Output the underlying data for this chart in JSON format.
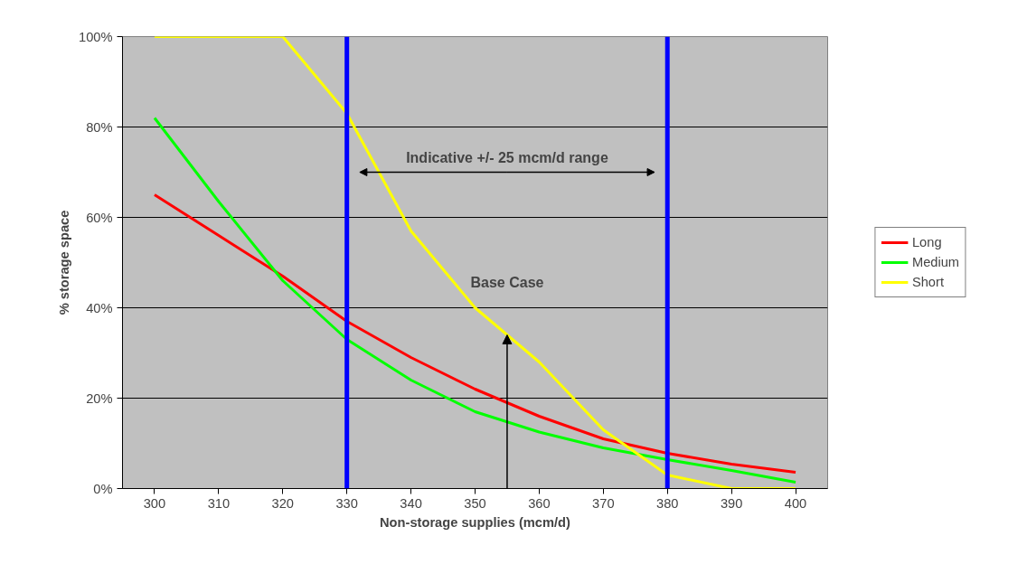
{
  "chart_data": {
    "type": "line",
    "xlabel": "Non-storage supplies (mcm/d)",
    "ylabel": "% storage space",
    "x": [
      300,
      310,
      320,
      330,
      340,
      350,
      360,
      370,
      380,
      390,
      400
    ],
    "series": [
      {
        "name": "Long",
        "color": "#ff0000",
        "values": [
          65,
          56,
          47,
          37,
          29,
          22,
          16,
          11,
          7.8,
          5.4,
          3.6
        ]
      },
      {
        "name": "Medium",
        "color": "#00ff00",
        "values": [
          82,
          63.5,
          46,
          33,
          24,
          17,
          12.5,
          9,
          6.4,
          4,
          1.4
        ]
      },
      {
        "name": "Short",
        "color": "#ffff00",
        "values": [
          100,
          100,
          100,
          83,
          57,
          40,
          28,
          13,
          3,
          0,
          0
        ]
      }
    ],
    "xlim": [
      295,
      405
    ],
    "ylim": [
      0,
      100
    ],
    "xticks": [
      300,
      310,
      320,
      330,
      340,
      350,
      360,
      370,
      380,
      390,
      400
    ],
    "yticks": [
      {
        "value": 0,
        "label": "0%"
      },
      {
        "value": 20,
        "label": "20%"
      },
      {
        "value": 40,
        "label": "40%"
      },
      {
        "value": 60,
        "label": "60%"
      },
      {
        "value": 80,
        "label": "80%"
      },
      {
        "value": 100,
        "label": "100%"
      }
    ],
    "ref_lines": [
      {
        "axis": "x",
        "value": 330,
        "label": null,
        "color": "#0000ff"
      },
      {
        "axis": "x",
        "value": 380,
        "label": null,
        "color": "#0000ff"
      }
    ],
    "annotations": [
      "Indicative +/- 25 mcm/d range",
      "Base Case"
    ],
    "grid": "y",
    "legend": "right",
    "marker": "none",
    "line_style": "solid"
  }
}
